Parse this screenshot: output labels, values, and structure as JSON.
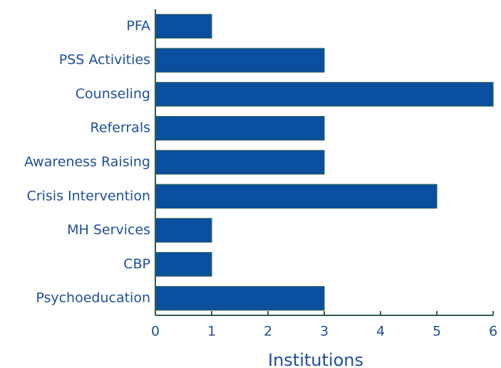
{
  "chart_data": {
    "type": "bar",
    "orientation": "horizontal",
    "categories": [
      "PFA",
      "PSS Activities",
      "Counseling",
      "Referrals",
      "Awareness Raising",
      "Crisis Intervention",
      "MH Services",
      "CBP",
      "Psychoeducation"
    ],
    "values": [
      1,
      3,
      6,
      3,
      3,
      5,
      1,
      1,
      3
    ],
    "color": "#0b4fa0",
    "edge_color": "#2f5f4a",
    "xlabel": "Institutions",
    "xlim": [
      0,
      6
    ],
    "xticks": [
      0,
      1,
      2,
      3,
      4,
      5,
      6
    ],
    "grid": false
  }
}
